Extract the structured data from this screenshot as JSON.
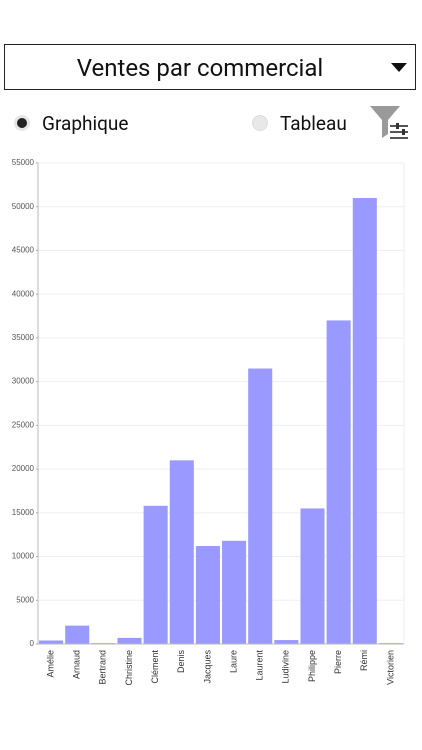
{
  "dropdown": {
    "label": "Ventes par commercial"
  },
  "view_options": [
    "Graphique",
    "Tableau"
  ],
  "chart_data": {
    "type": "bar",
    "categories": [
      "Amélie",
      "Arnaud",
      "Bertrand",
      "Christine",
      "Clément",
      "Denis",
      "Jacques",
      "Laure",
      "Laurent",
      "Ludivine",
      "Philippe",
      "Pierre",
      "Rémi",
      "Victorien"
    ],
    "values": [
      400,
      2100,
      100,
      700,
      15800,
      21000,
      11200,
      11800,
      31500,
      450,
      15500,
      37000,
      51000,
      100
    ],
    "color": "#9999ff",
    "ylim": [
      0,
      55000
    ],
    "yticks": [
      0,
      5000,
      10000,
      15000,
      20000,
      25000,
      30000,
      35000,
      40000,
      45000,
      50000,
      55000
    ],
    "grid": true
  }
}
